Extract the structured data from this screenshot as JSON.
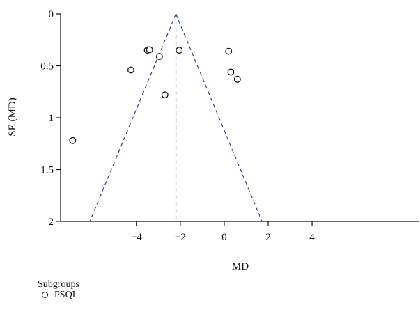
{
  "chart_data": {
    "type": "scatter",
    "subtype": "funnel-plot",
    "xlabel": "MD",
    "ylabel": "SE (MD)",
    "x_ticks": [
      -4,
      -2,
      0,
      2,
      4
    ],
    "y_ticks": [
      0,
      0.5,
      1,
      1.5,
      2
    ],
    "ylim": [
      0,
      2
    ],
    "y_inverted": true,
    "xlim": [
      -7.45,
      8.85
    ],
    "pooled_md": -2.2,
    "funnel_color": "#2b3f96",
    "series": [
      {
        "name": "PSQI",
        "points": [
          {
            "x": -6.9,
            "y": 1.22
          },
          {
            "x": -4.25,
            "y": 0.54
          },
          {
            "x": -3.5,
            "y": 0.35
          },
          {
            "x": -3.4,
            "y": 0.345
          },
          {
            "x": -2.95,
            "y": 0.41
          },
          {
            "x": -2.7,
            "y": 0.78
          },
          {
            "x": -2.05,
            "y": 0.35
          },
          {
            "x": 0.2,
            "y": 0.36
          },
          {
            "x": 0.3,
            "y": 0.56
          },
          {
            "x": 0.6,
            "y": 0.63
          }
        ]
      }
    ],
    "legend": {
      "title": "Subgroups",
      "items": [
        {
          "label": "PSQI"
        }
      ]
    }
  }
}
